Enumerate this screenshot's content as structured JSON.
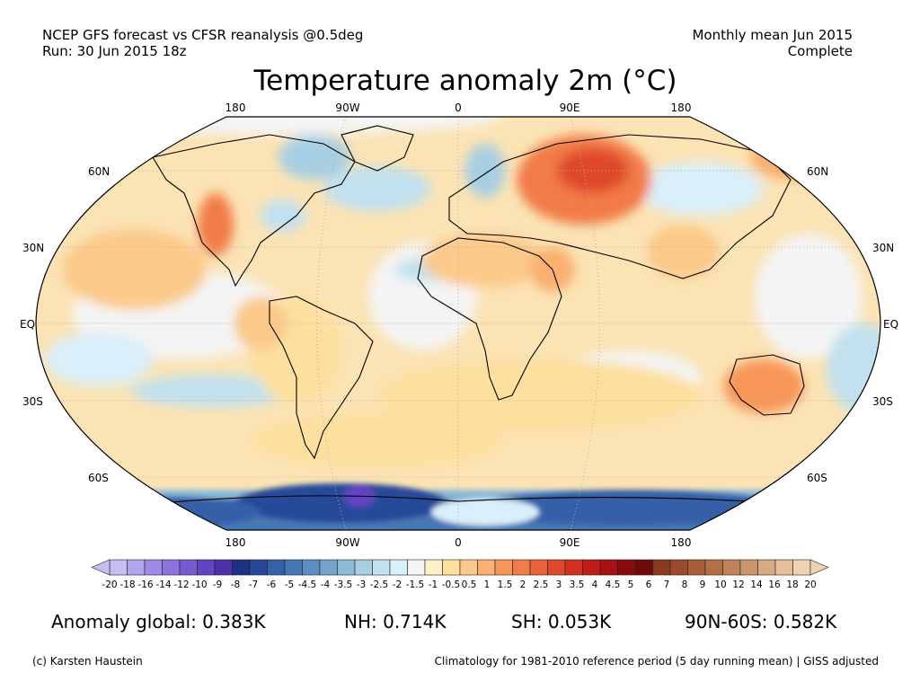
{
  "header": {
    "left_line1": "NCEP GFS forecast vs CFSR reanalysis @0.5deg",
    "left_line2": "Run: 30 Jun 2015 18z",
    "right_line1": "Monthly mean Jun 2015",
    "right_line2": "Complete"
  },
  "title": "Temperature anomaly 2m (°C)",
  "map": {
    "lon_labels": [
      "180",
      "90W",
      "0",
      "90E",
      "180"
    ],
    "lat_labels": [
      "60N",
      "30N",
      "EQ",
      "30S",
      "60S"
    ]
  },
  "colorbar": {
    "labels": [
      "-20",
      "-18",
      "-16",
      "-14",
      "-12",
      "-10",
      "-9",
      "-8",
      "-7",
      "-6",
      "-5",
      "-4.5",
      "-4",
      "-3.5",
      "-3",
      "-2.5",
      "-2",
      "-1.5",
      "-1",
      "-0.5",
      "0.5",
      "1",
      "1.5",
      "2",
      "2.5",
      "3",
      "3.5",
      "4",
      "4.5",
      "5",
      "6",
      "7",
      "8",
      "9",
      "10",
      "12",
      "14",
      "16",
      "18",
      "20"
    ],
    "colors": [
      "#c7bdf5",
      "#b3a4ee",
      "#9f8be6",
      "#8b72dd",
      "#7759d3",
      "#6343c4",
      "#4e2fa8",
      "#1f2f86",
      "#27489a",
      "#3561a8",
      "#4678b5",
      "#5b8ec1",
      "#74a4cc",
      "#8dbad7",
      "#a7cfe3",
      "#c1e1ee",
      "#d9effa",
      "#f4f4f4",
      "#fff1c7",
      "#fde09e",
      "#fbc98a",
      "#f9b070",
      "#f79658",
      "#f27c47",
      "#ea6238",
      "#df482c",
      "#d23021",
      "#c01d1a",
      "#a81012",
      "#8b0a0c",
      "#6e0a0a",
      "#8b3a20",
      "#9a4b2c",
      "#a85c38",
      "#b46e48",
      "#c08259",
      "#cc966c",
      "#d8aa81",
      "#e4bf98",
      "#efd3b0"
    ]
  },
  "stats": {
    "global": "Anomaly global: 0.383K",
    "nh": "NH: 0.714K",
    "sh": "SH: 0.053K",
    "arctic": "90N-60S: 0.582K"
  },
  "footer": {
    "credit": "(c) Karsten Haustein",
    "note": "Climatology for 1981-2010 reference period (5 day running mean) | GISS adjusted"
  }
}
